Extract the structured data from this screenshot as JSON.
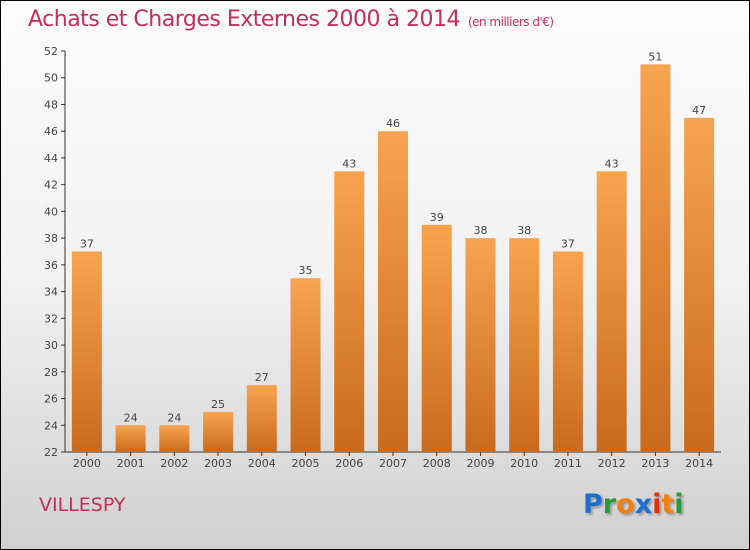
{
  "chart_data": {
    "type": "bar",
    "title": "Achats et Charges Externes 2000 à 2014",
    "unit_label": "(en milliers d'€)",
    "categories": [
      "2000",
      "2001",
      "2002",
      "2003",
      "2004",
      "2005",
      "2006",
      "2007",
      "2008",
      "2009",
      "2010",
      "2011",
      "2012",
      "2013",
      "2014"
    ],
    "values": [
      37,
      24,
      24,
      25,
      27,
      35,
      43,
      46,
      39,
      38,
      38,
      37,
      43,
      51,
      47
    ],
    "ylim": [
      22,
      52
    ],
    "yticks": [
      22,
      24,
      26,
      28,
      30,
      32,
      34,
      36,
      38,
      40,
      42,
      44,
      46,
      48,
      50,
      52
    ],
    "xlabel": "",
    "ylabel": "",
    "bar_color": "#f0903a"
  },
  "location": "VILLESPY",
  "logo": {
    "letters": [
      "P",
      "r",
      "o",
      "x",
      "i",
      "t",
      "i"
    ],
    "colors": [
      "#1a6fd0",
      "#2a9a3a",
      "#f08010",
      "#1a6fd0",
      "#e03010",
      "#f08010",
      "#2a9a3a"
    ]
  }
}
